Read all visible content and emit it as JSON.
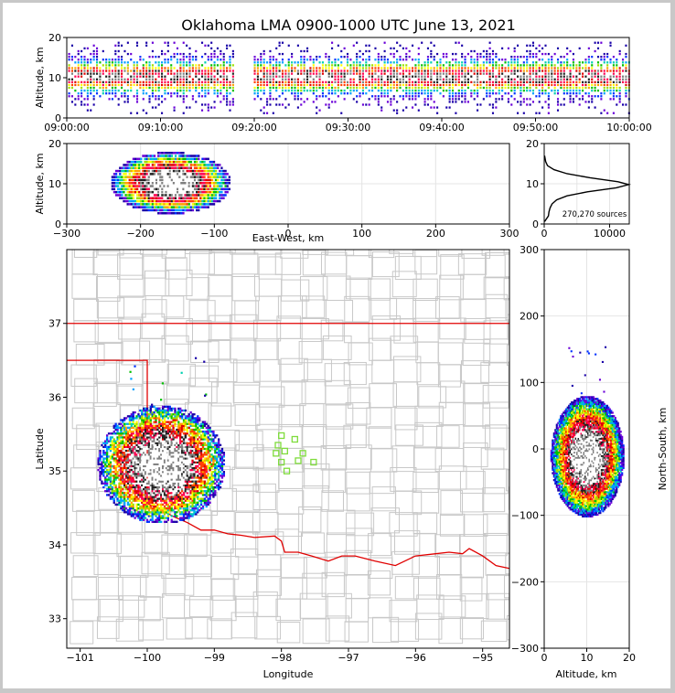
{
  "chart_data": {
    "type": "scatter",
    "title": "Oklahoma LMA 0900-1000 UTC June 13, 2021",
    "colormap": [
      "#1a00a8",
      "#6a00d8",
      "#0030ff",
      "#00a0ff",
      "#00d0b0",
      "#00c000",
      "#a0e000",
      "#ffff00",
      "#ffa000",
      "#ff4000",
      "#e00000",
      "#ff0050",
      "#202020",
      "#808080",
      "#ffffff"
    ],
    "panels": [
      {
        "name": "time-altitude",
        "ylabel": "Altitude, km",
        "xlim": [
          0,
          60
        ],
        "ylim": [
          0,
          20
        ],
        "yticks": [
          "0",
          "10",
          "20"
        ],
        "xtick_labels": [
          "09:00:00",
          "09:10:00",
          "09:20:00",
          "09:30:00",
          "09:40:00",
          "09:50:00",
          "10:00:00"
        ],
        "source_band_km": [
          1,
          19
        ],
        "core_altitude_km": 10,
        "gap_minutes": [
          17.8,
          19.7
        ]
      },
      {
        "name": "eastwest-altitude",
        "xlabel": "East-West, km",
        "ylabel": "Altitude, km",
        "xlim": [
          -300,
          300
        ],
        "ylim": [
          0,
          20
        ],
        "xticks": [
          "−300",
          "−200",
          "−100",
          "0",
          "100",
          "200",
          "300"
        ],
        "yticks": [
          "0",
          "10",
          "20"
        ],
        "storm_x_km": [
          -250,
          -80
        ],
        "core_x_km": -160,
        "core_altitude_km": 10
      },
      {
        "name": "altitude-histogram",
        "xlim": [
          0,
          13000
        ],
        "ylim": [
          0,
          20
        ],
        "xticks": [
          "0",
          "10000"
        ],
        "yticks": [
          "0",
          "10",
          "20"
        ],
        "peak_altitude_km": 9.8,
        "peak_count": 12900,
        "annotation": "270,270 sources",
        "profile": [
          {
            "alt": 0.6,
            "count": 60
          },
          {
            "alt": 2,
            "count": 650
          },
          {
            "alt": 3,
            "count": 720
          },
          {
            "alt": 4,
            "count": 900
          },
          {
            "alt": 5,
            "count": 1200
          },
          {
            "alt": 6,
            "count": 1900
          },
          {
            "alt": 7,
            "count": 3500
          },
          {
            "alt": 8,
            "count": 6600
          },
          {
            "alt": 9,
            "count": 11000
          },
          {
            "alt": 9.8,
            "count": 12900
          },
          {
            "alt": 10.5,
            "count": 11300
          },
          {
            "alt": 11.5,
            "count": 7000
          },
          {
            "alt": 12.5,
            "count": 3500
          },
          {
            "alt": 13.5,
            "count": 1500
          },
          {
            "alt": 14.5,
            "count": 500
          },
          {
            "alt": 15.5,
            "count": 220
          },
          {
            "alt": 17,
            "count": 60
          }
        ]
      },
      {
        "name": "plan-view-map",
        "xlabel": "Longitude",
        "ylabel": "Latitude",
        "xlim": [
          -101.2,
          -94.6
        ],
        "ylim": [
          32.6,
          38
        ],
        "xticks": [
          "−101",
          "−100",
          "−99",
          "−98",
          "−97",
          "−96",
          "−95"
        ],
        "yticks": [
          "33",
          "34",
          "35",
          "36",
          "37"
        ],
        "storm_center": [
          -99.8,
          35.1
        ],
        "stations": [
          {
            "lon": -98.0,
            "lat": 35.48
          },
          {
            "lon": -97.8,
            "lat": 35.43
          },
          {
            "lon": -98.05,
            "lat": 35.35
          },
          {
            "lon": -97.95,
            "lat": 35.27
          },
          {
            "lon": -98.08,
            "lat": 35.24
          },
          {
            "lon": -97.68,
            "lat": 35.24
          },
          {
            "lon": -97.75,
            "lat": 35.14
          },
          {
            "lon": -98.0,
            "lat": 35.12
          },
          {
            "lon": -97.52,
            "lat": 35.12
          },
          {
            "lon": -97.92,
            "lat": 35.0
          }
        ],
        "red_river": [
          [
            -100.0,
            34.56
          ],
          [
            -99.85,
            34.5
          ],
          [
            -99.6,
            34.38
          ],
          [
            -99.4,
            34.3
          ],
          [
            -99.2,
            34.2
          ],
          [
            -99.0,
            34.2
          ],
          [
            -98.8,
            34.15
          ],
          [
            -98.6,
            34.13
          ],
          [
            -98.4,
            34.1
          ],
          [
            -98.1,
            34.12
          ],
          [
            -98.0,
            34.05
          ],
          [
            -97.95,
            33.9
          ],
          [
            -97.75,
            33.9
          ],
          [
            -97.55,
            33.85
          ],
          [
            -97.3,
            33.78
          ],
          [
            -97.1,
            33.85
          ],
          [
            -96.9,
            33.85
          ],
          [
            -96.6,
            33.78
          ],
          [
            -96.3,
            33.72
          ],
          [
            -96.0,
            33.85
          ],
          [
            -95.7,
            33.88
          ],
          [
            -95.5,
            33.9
          ],
          [
            -95.3,
            33.88
          ],
          [
            -95.2,
            33.95
          ],
          [
            -95.0,
            33.85
          ],
          [
            -94.8,
            33.72
          ],
          [
            -94.6,
            33.68
          ]
        ]
      },
      {
        "name": "altitude-northsouth",
        "xlabel": "Altitude, km",
        "ylabel": "North-South, km",
        "xlim": [
          0,
          20
        ],
        "ylim": [
          -300,
          300
        ],
        "xticks": [
          "0",
          "10",
          "20"
        ],
        "yticks": [
          "−300",
          "−200",
          "−100",
          "0",
          "100",
          "200",
          "300"
        ],
        "storm_y_km": [
          -100,
          80
        ],
        "core_altitude_km": 10
      }
    ]
  }
}
